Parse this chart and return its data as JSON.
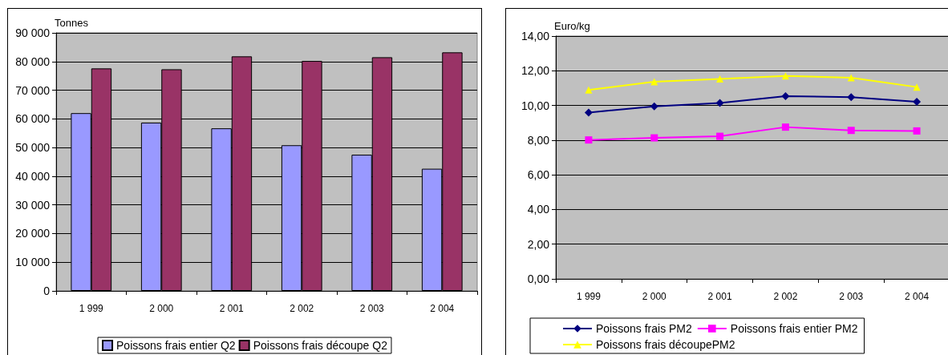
{
  "chart_data": [
    {
      "type": "bar",
      "ylabel": "Tonnes",
      "categories": [
        "1 999",
        "2 000",
        "2 001",
        "2 002",
        "2 003",
        "2 004"
      ],
      "series": [
        {
          "name": "Poissons frais entier Q2",
          "color": "#9999ff",
          "values": [
            62000,
            58700,
            56700,
            50800,
            47500,
            42600
          ]
        },
        {
          "name": "Poissons frais découpe Q2",
          "color": "#993366",
          "values": [
            77600,
            77300,
            81800,
            80200,
            81500,
            83200
          ]
        }
      ],
      "ylim": [
        0,
        90000
      ],
      "yticks": [
        {
          "value": 0,
          "label": "0"
        },
        {
          "value": 10000,
          "label": "10 000"
        },
        {
          "value": 20000,
          "label": "20 000"
        },
        {
          "value": 30000,
          "label": "30 000"
        },
        {
          "value": 40000,
          "label": "40 000"
        },
        {
          "value": 50000,
          "label": "50 000"
        },
        {
          "value": 60000,
          "label": "60 000"
        },
        {
          "value": 70000,
          "label": "70 000"
        },
        {
          "value": 80000,
          "label": "80 000"
        },
        {
          "value": 90000,
          "label": "90 000"
        }
      ],
      "grid": "y",
      "legend": "bottom"
    },
    {
      "type": "line",
      "ylabel": "Euro/kg",
      "categories": [
        "1 999",
        "2 000",
        "2 001",
        "2 002",
        "2 003",
        "2 004"
      ],
      "series": [
        {
          "name": "Poissons frais PM2",
          "color": "#000080",
          "marker": "diamond",
          "values": [
            9.59,
            9.95,
            10.14,
            10.53,
            10.48,
            10.21
          ]
        },
        {
          "name": "Poissons frais entier PM2",
          "color": "#ff00ff",
          "marker": "square",
          "values": [
            8.01,
            8.13,
            8.22,
            8.75,
            8.56,
            8.53
          ]
        },
        {
          "name": "Poissons frais découpePM2",
          "color": "#ffff00",
          "marker": "triangle",
          "values": [
            10.89,
            11.37,
            11.53,
            11.7,
            11.6,
            11.06
          ]
        }
      ],
      "ylim": [
        0,
        14
      ],
      "yticks": [
        {
          "value": 0,
          "label": "0,00"
        },
        {
          "value": 2,
          "label": "2,00"
        },
        {
          "value": 4,
          "label": "4,00"
        },
        {
          "value": 6,
          "label": "6,00"
        },
        {
          "value": 8,
          "label": "8,00"
        },
        {
          "value": 10,
          "label": "10,00"
        },
        {
          "value": 12,
          "label": "12,00"
        },
        {
          "value": 14,
          "label": "14,00"
        }
      ],
      "grid": "y",
      "legend": "bottom"
    }
  ]
}
